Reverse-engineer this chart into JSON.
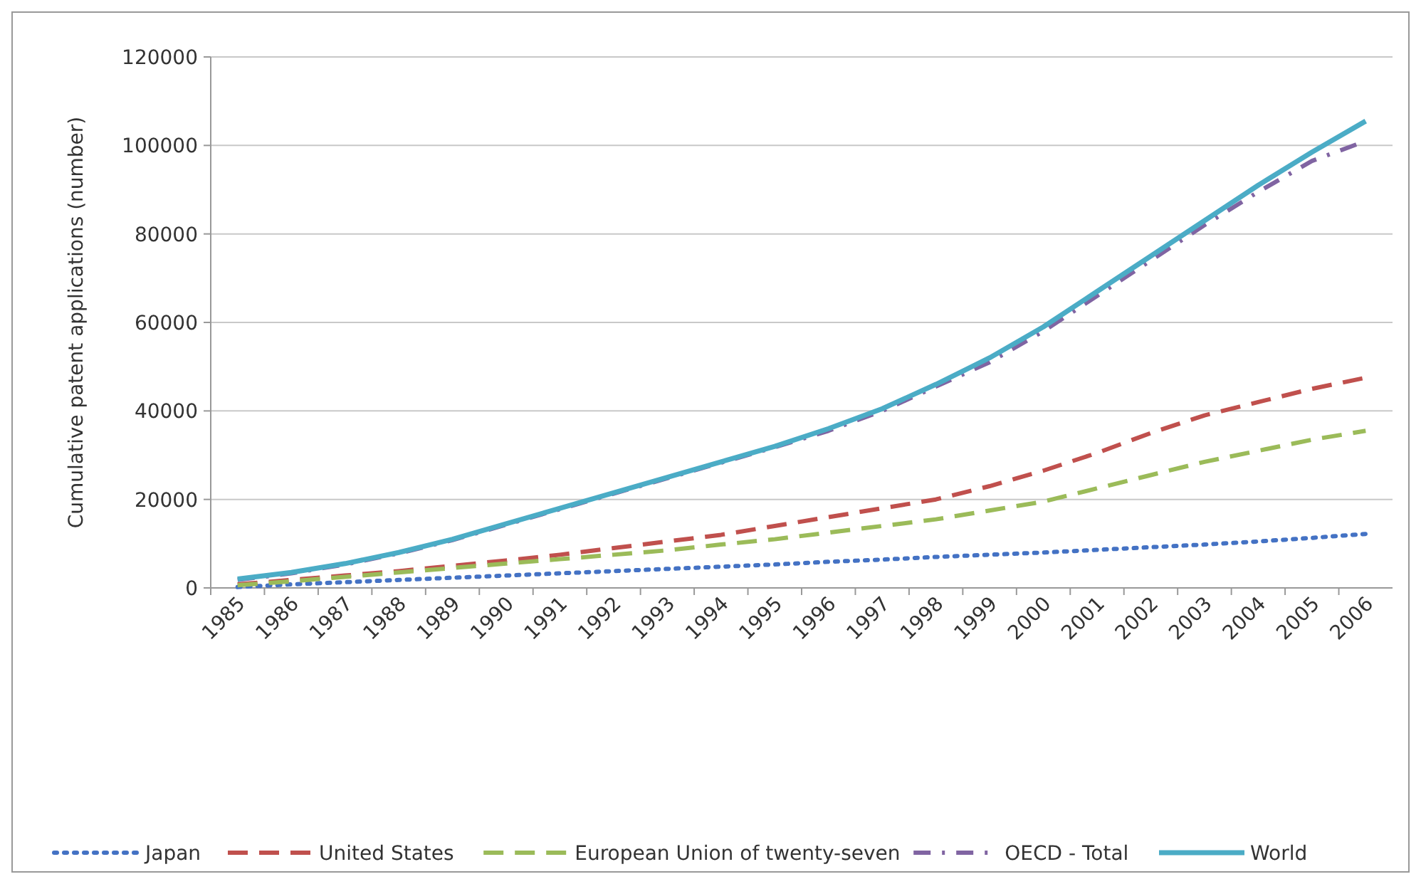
{
  "chart_data": {
    "type": "line",
    "ylabel": "Cumulative patent applications (number)",
    "categories": [
      "1985",
      "1986",
      "1987",
      "1988",
      "1989",
      "1990",
      "1991",
      "1992",
      "1993",
      "1994",
      "1995",
      "1996",
      "1997",
      "1998",
      "1999",
      "2000",
      "2001",
      "2002",
      "2003",
      "2004",
      "2005",
      "2006"
    ],
    "ylim": [
      0,
      120000
    ],
    "yticks": [
      0,
      20000,
      40000,
      60000,
      80000,
      100000,
      120000
    ],
    "grid": "y",
    "legend": "bottom",
    "marker": "none",
    "series": [
      {
        "name": "Japan",
        "color": "#4472c4",
        "line_style": "dotted",
        "values": [
          200,
          800,
          1300,
          1800,
          2300,
          2800,
          3300,
          3800,
          4300,
          4800,
          5300,
          5900,
          6400,
          7000,
          7500,
          8000,
          8600,
          9200,
          9800,
          10500,
          11300,
          12200
        ]
      },
      {
        "name": "United States",
        "color": "#c0504d",
        "line_style": "dashed",
        "values": [
          800,
          1800,
          2800,
          3800,
          5000,
          6200,
          7500,
          9000,
          10500,
          12000,
          14000,
          16000,
          18000,
          20000,
          23000,
          26500,
          30500,
          35000,
          39000,
          42000,
          45000,
          47500
        ]
      },
      {
        "name": "European Union of twenty-seven",
        "color": "#9bbb59",
        "line_style": "dashed",
        "values": [
          600,
          1500,
          2500,
          3500,
          4500,
          5500,
          6500,
          7500,
          8500,
          9800,
          11000,
          12500,
          14000,
          15500,
          17500,
          19500,
          22500,
          25500,
          28500,
          31000,
          33500,
          35500
        ]
      },
      {
        "name": "OECD - Total",
        "color": "#8064a2",
        "line_style": "dashdot",
        "values": [
          1800,
          3300,
          5300,
          7800,
          10800,
          14300,
          17800,
          21300,
          24800,
          28300,
          31800,
          35500,
          40000,
          45500,
          51000,
          58000,
          66000,
          74000,
          82000,
          89500,
          96500,
          101000
        ]
      },
      {
        "name": "World",
        "color": "#4bacc6",
        "line_style": "solid",
        "values": [
          2000,
          3500,
          5500,
          8000,
          11000,
          14500,
          18000,
          21500,
          25000,
          28500,
          32000,
          36000,
          40500,
          46000,
          52000,
          59000,
          67000,
          75000,
          83000,
          91000,
          98500,
          105500
        ]
      }
    ]
  }
}
